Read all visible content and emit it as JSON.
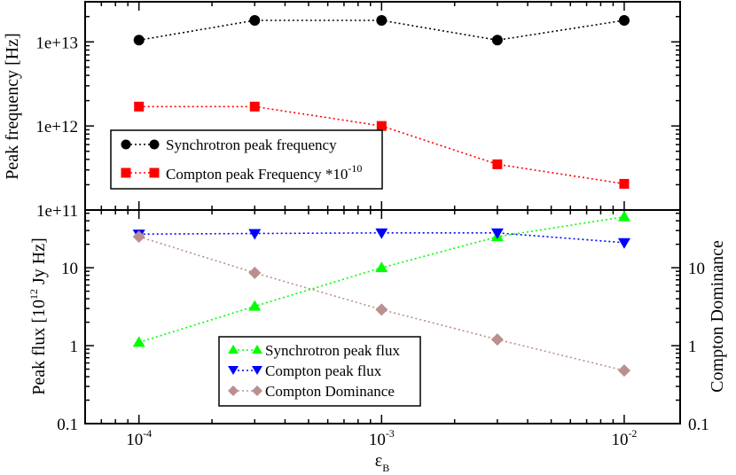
{
  "chart_data": [
    {
      "type": "line",
      "panel": "top",
      "x": [
        0.0001,
        0.0003,
        0.001,
        0.003,
        0.01
      ],
      "x_tick_labels": [
        "10",
        "10",
        "10"
      ],
      "x_tick_exponents": [
        "-4",
        "-3",
        "-2"
      ],
      "ylabel": "Peak frequency [Hz]",
      "y_tick_labels": [
        "1e+11",
        "1e+12",
        "1e+13"
      ],
      "ylim": [
        100000000000.0,
        30000000000000.0
      ],
      "xlim": [
        6e-05,
        0.017
      ],
      "series": [
        {
          "name": "Synchrotron peak frequency",
          "color": "#000000",
          "marker": "circle",
          "values": [
            10500000000000.0,
            18000000000000.0,
            18000000000000.0,
            10500000000000.0,
            18000000000000.0
          ]
        },
        {
          "name": "Compton peak Frequency *10",
          "name_exponent": "-10",
          "color": "#ff0000",
          "marker": "square",
          "values": [
            1700000000000.0,
            1700000000000.0,
            1000000000000.0,
            350000000000.0,
            205000000000.0
          ]
        }
      ],
      "legend_position": "center-left"
    },
    {
      "type": "line",
      "panel": "bottom",
      "x": [
        0.0001,
        0.0003,
        0.001,
        0.003,
        0.01
      ],
      "xlabel": "ε",
      "xlabel_sub": "B",
      "ylabel": "Peak flux [10",
      "ylabel_sup": "12",
      "ylabel_tail": " Jy Hz]",
      "y2label": "Compton Dominance",
      "y_tick_labels": [
        "0.1",
        "1",
        "10"
      ],
      "y2_tick_labels": [
        "0.1",
        "1",
        "10"
      ],
      "ylim": [
        0.1,
        55
      ],
      "xlim": [
        6e-05,
        0.017
      ],
      "series": [
        {
          "name": "Synchrotron peak flux",
          "color": "#00ff00",
          "marker": "triangle-up",
          "values": [
            1.1,
            3.2,
            10,
            25,
            45
          ]
        },
        {
          "name": "Compton peak flux",
          "color": "#0000ff",
          "marker": "triangle-down",
          "values": [
            27,
            27.5,
            28,
            28,
            21
          ]
        },
        {
          "name": "Compton Dominance",
          "color": "#bc8f8f",
          "marker": "diamond",
          "values": [
            25,
            8.6,
            2.9,
            1.2,
            0.48
          ]
        }
      ],
      "legend_position": "bottom-center"
    }
  ]
}
